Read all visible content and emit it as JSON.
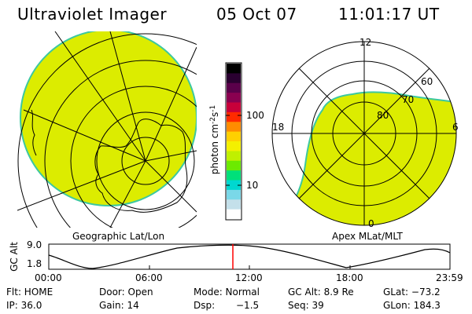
{
  "header": {
    "instrument": "Ultraviolet Imager",
    "date": "05 Oct 07",
    "time": "11:01:17 UT"
  },
  "left_panel": {
    "caption": "Geographic Lat/Lon",
    "fill_color": "#dcec00",
    "coast_color": "#00c8ff"
  },
  "right_panel": {
    "caption": "Apex MLat/MLT",
    "mlt_labels": {
      "top": "12",
      "left": "18",
      "right": "6",
      "bottom": "0"
    },
    "lat_labels": [
      "80",
      "70",
      "60"
    ],
    "fill_color": "#dcec00"
  },
  "colorbar": {
    "unit_label": "photon cm",
    "unit_sup1": "-2",
    "unit_s": "s",
    "unit_sup2": "-1",
    "ticks": [
      "100",
      "10"
    ],
    "colors_top_to_bottom": [
      "#000000",
      "#2a0030",
      "#5a004a",
      "#8a0050",
      "#c8003a",
      "#ff2a00",
      "#ff8c00",
      "#ffd000",
      "#f4f000",
      "#c0f000",
      "#6cea00",
      "#00e07a",
      "#00d8d0",
      "#7ad8e8",
      "#c4e0ea",
      "#ffffff"
    ]
  },
  "altitude_plot": {
    "ylabel": "GC Alt",
    "yticks": [
      "9.0",
      "1.8"
    ],
    "xticks": [
      "00:00",
      "06:00",
      "12:00",
      "18:00",
      "23:59"
    ],
    "marker_color": "#ff0000"
  },
  "info": {
    "flt_label": "Flt: HOME",
    "door_label": "Door: Open",
    "mode_label": "Mode: Normal",
    "gcalt_label": "GC Alt: 8.9 Re",
    "glat_label": "GLat: −73.2",
    "ip_label": "IP: 36.0",
    "gain_label": "Gain: 14",
    "dsp_label": "Dsp:",
    "dsp_value": "−1.5",
    "seq_label": "Seq: 39",
    "glon_label": "GLon: 184.3"
  }
}
